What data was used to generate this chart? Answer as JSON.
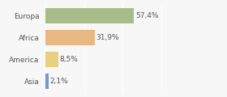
{
  "categories": [
    "Europa",
    "Africa",
    "America",
    "Asia"
  ],
  "values": [
    57.4,
    31.9,
    8.5,
    2.1
  ],
  "labels": [
    "57,4%",
    "31,9%",
    "8,5%",
    "2,1%"
  ],
  "bar_colors": [
    "#a8bc8a",
    "#e8b882",
    "#e8d080",
    "#7b96c8"
  ],
  "background_color": "#f7f7f7",
  "xlim": [
    0,
    100
  ],
  "bar_height": 0.72,
  "label_fontsize": 6.5,
  "tick_fontsize": 6.5,
  "figsize": [
    2.8,
    1.2
  ],
  "dpi": 100
}
